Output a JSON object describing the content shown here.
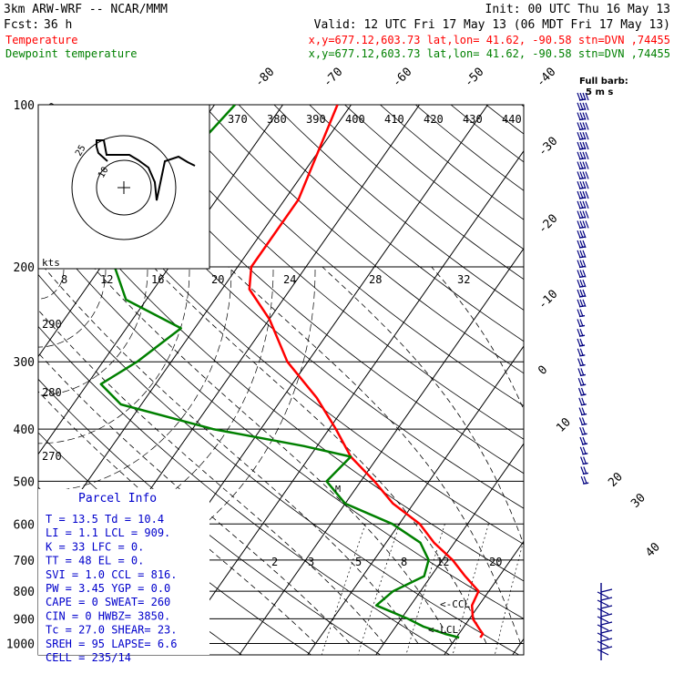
{
  "header": {
    "model": "3km ARW-WRF -- NCAR/MMM",
    "init": "Init: 00 UTC Thu 16 May 13",
    "fcst_label": "Fcst:",
    "fcst_value": "36 h",
    "valid": "Valid: 12 UTC Fri 17 May 13 (06 MDT Fri 17 May 13)",
    "temp_label": "Temperature",
    "dew_label": "Dewpoint temperature",
    "point_info": "x,y=677.12,603.73   lat,lon= 41.62, -90.58  stn=DVN ,74455"
  },
  "colors": {
    "temperature": "#ff0000",
    "dewpoint": "#008000",
    "parcel_info": "#0000cc",
    "barbs": "#000080",
    "axes": "#000000"
  },
  "chart_data": {
    "type": "skew-t",
    "pressure_levels": [
      100,
      200,
      300,
      400,
      500,
      600,
      700,
      800,
      900,
      1000
    ],
    "temperature_ticks": [
      "-80",
      "-70",
      "-60",
      "-50",
      "-40",
      "-30",
      "-20",
      "-10",
      "0",
      "10",
      "20",
      "30",
      "40"
    ],
    "theta_labels": [
      "370",
      "380",
      "390",
      "400",
      "410",
      "420",
      "430",
      "440"
    ],
    "theta_left_labels": [
      "290",
      "280",
      "270"
    ],
    "mixing_ratio_labels": [
      "2",
      "3",
      "5",
      "8",
      "12",
      "20"
    ],
    "hodo_ring_labels": [
      "kts",
      "8",
      "12",
      "16",
      "20",
      "24",
      "28",
      "32"
    ],
    "hodograph": {
      "labels": [
        "25",
        "10"
      ]
    },
    "markers": {
      "ccl": "<-CCL",
      "lcl": "<-LCL",
      "el_mark": "M"
    },
    "barb_legend": [
      "Full barb:",
      "5 m s"
    ],
    "temperature": [
      {
        "p": 100,
        "t": -62
      },
      {
        "p": 150,
        "t": -58
      },
      {
        "p": 200,
        "t": -58
      },
      {
        "p": 220,
        "t": -56
      },
      {
        "p": 250,
        "t": -50
      },
      {
        "p": 300,
        "t": -43
      },
      {
        "p": 350,
        "t": -35
      },
      {
        "p": 400,
        "t": -29
      },
      {
        "p": 450,
        "t": -24
      },
      {
        "p": 500,
        "t": -18
      },
      {
        "p": 550,
        "t": -13
      },
      {
        "p": 600,
        "t": -7
      },
      {
        "p": 650,
        "t": -3
      },
      {
        "p": 700,
        "t": 1.5
      },
      {
        "p": 750,
        "t": 5
      },
      {
        "p": 800,
        "t": 8.5
      },
      {
        "p": 850,
        "t": 9
      },
      {
        "p": 900,
        "t": 10.5
      },
      {
        "p": 940,
        "t": 12.5
      },
      {
        "p": 960,
        "t": 13.5
      },
      {
        "p": 975,
        "t": 13.5
      }
    ],
    "dewpoint": [
      {
        "p": 100,
        "t": -77
      },
      {
        "p": 150,
        "t": -80
      },
      {
        "p": 190,
        "t": -80
      },
      {
        "p": 200,
        "t": -78
      },
      {
        "p": 230,
        "t": -73
      },
      {
        "p": 260,
        "t": -62
      },
      {
        "p": 300,
        "t": -65
      },
      {
        "p": 330,
        "t": -68
      },
      {
        "p": 360,
        "t": -63
      },
      {
        "p": 400,
        "t": -47
      },
      {
        "p": 430,
        "t": -32
      },
      {
        "p": 450,
        "t": -24
      },
      {
        "p": 500,
        "t": -25
      },
      {
        "p": 550,
        "t": -20
      },
      {
        "p": 600,
        "t": -11
      },
      {
        "p": 650,
        "t": -5
      },
      {
        "p": 700,
        "t": -2
      },
      {
        "p": 750,
        "t": -1
      },
      {
        "p": 800,
        "t": -4
      },
      {
        "p": 850,
        "t": -5
      },
      {
        "p": 900,
        "t": 1
      },
      {
        "p": 930,
        "t": 4
      },
      {
        "p": 960,
        "t": 8
      },
      {
        "p": 975,
        "t": 10.4
      }
    ],
    "parcel_info": {
      "title": "Parcel Info",
      "rows": [
        "T   =  13.5  Td =  10.4",
        "LI  =   1.1  LCL =  909.",
        "K   =    33  LFC =    0.",
        "TT  =    48  EL  =    0.",
        "SVI =   1.0  CCL =  816.",
        "PW  =  3.45  YGP =   0.0",
        "CAPE =    0  SWEAT=  260",
        "CIN =     0  HWBZ= 3850.",
        "Tc  =  27.0  SHEAR=  23.",
        "SREH =   95  LAPSE=  6.6",
        "CELL = 235/14"
      ]
    }
  }
}
